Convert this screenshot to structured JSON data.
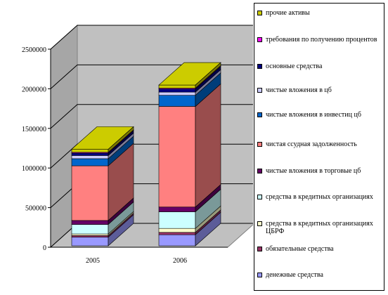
{
  "chart_data": {
    "type": "bar",
    "stacked": true,
    "three_d": true,
    "categories": [
      "2005",
      "2006"
    ],
    "ylim": [
      0,
      2500000
    ],
    "yticks": [
      0,
      500000,
      1000000,
      1500000,
      2000000,
      2500000
    ],
    "ytick_labels": [
      "0",
      "500000",
      "1000000",
      "1500000",
      "2000000",
      "2500000"
    ],
    "grid": true,
    "legend_position": "right",
    "series": [
      {
        "name": "денежные средства",
        "color": "#9999ff",
        "values": [
          110000,
          140000
        ]
      },
      {
        "name": "обязательные средства",
        "color": "#993366",
        "values": [
          20000,
          30000
        ]
      },
      {
        "name": "средства в кредитных организациях ЦБРФ",
        "color": "#ffffcc",
        "values": [
          20000,
          50000
        ]
      },
      {
        "name": "средства в кредитных организациях",
        "color": "#ccffff",
        "values": [
          120000,
          210000
        ]
      },
      {
        "name": "чистые вложения в торговые цб",
        "color": "#660066",
        "values": [
          50000,
          60000
        ]
      },
      {
        "name": "чистая ссудная задолженность",
        "color": "#ff8080",
        "values": [
          690000,
          1270000
        ]
      },
      {
        "name": "чистые вложения в инвестиц цб",
        "color": "#0066cc",
        "values": [
          90000,
          140000
        ]
      },
      {
        "name": "чистые вложения в цб",
        "color": "#ccccff",
        "values": [
          40000,
          40000
        ]
      },
      {
        "name": "основные средства",
        "color": "#000080",
        "values": [
          30000,
          40000
        ]
      },
      {
        "name": "требования по получению процентов",
        "color": "#ff00ff",
        "values": [
          10000,
          10000
        ]
      },
      {
        "name": "прочие активы",
        "color": "#cccc00",
        "values": [
          40000,
          40000
        ]
      }
    ]
  }
}
